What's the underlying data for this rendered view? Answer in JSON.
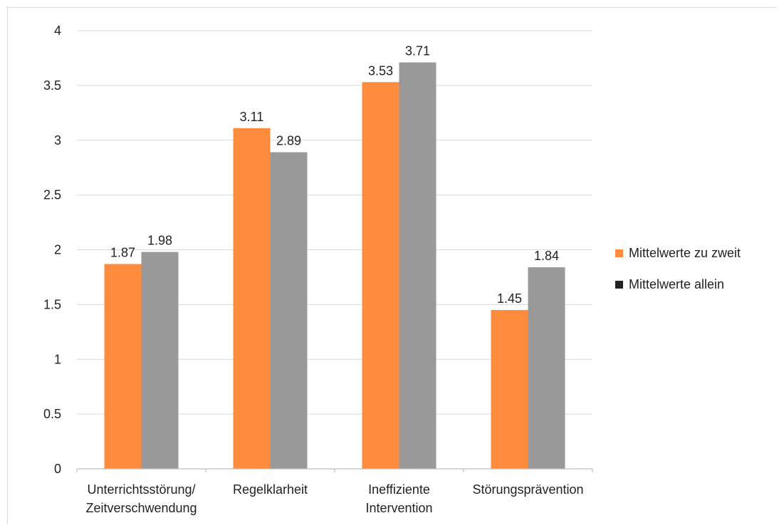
{
  "chart_data": {
    "type": "bar",
    "categories": [
      [
        "Unterrichtsstörung/",
        "Zeitverschwendung"
      ],
      [
        "Regelklarheit"
      ],
      [
        "Ineffiziente",
        "Intervention"
      ],
      [
        "Störungsprävention"
      ]
    ],
    "series": [
      {
        "name": "Mittelwerte zu zweit",
        "color": "#ff8b3d",
        "values": [
          1.87,
          3.11,
          3.53,
          1.45
        ]
      },
      {
        "name": "Mittelwerte allein",
        "color": "#999999",
        "values": [
          1.98,
          2.89,
          3.71,
          1.84
        ]
      }
    ],
    "value_labels": [
      [
        "1.87",
        "3.11",
        "3.53",
        "1.45"
      ],
      [
        "1.98",
        "2.89",
        "3.71",
        "1.84"
      ]
    ],
    "yticks": [
      "0",
      "0.5",
      "1",
      "1.5",
      "2",
      "2.5",
      "3",
      "3.5",
      "4"
    ],
    "ylim": [
      0,
      4
    ],
    "grid": true,
    "legend_position": "right"
  }
}
